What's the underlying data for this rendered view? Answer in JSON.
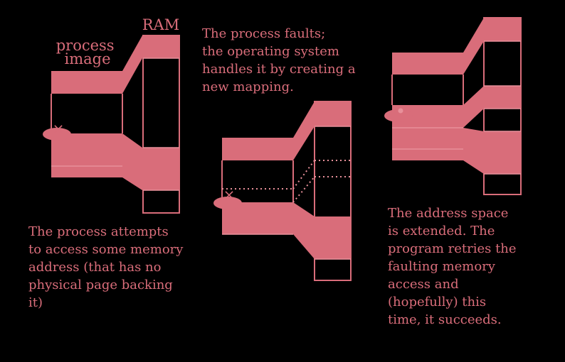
{
  "labels": {
    "process_image": [
      "process",
      "image"
    ],
    "ram": "RAM"
  },
  "captions": {
    "step1": [
      "The process attempts",
      "to access some memory",
      "address (that has no",
      "physical page backing",
      "it)"
    ],
    "step2": [
      "The process faults;",
      "the operating system",
      "handles it by creating a",
      "new mapping."
    ],
    "step3": [
      "The address space",
      "is extended. The",
      "program retries the",
      "faulting memory",
      "access and",
      "(hopefully) this",
      "time, it succeeds."
    ]
  },
  "markers": {
    "fault": "×"
  },
  "colors": {
    "background": "#000000",
    "primary": "#d96d7a",
    "light": "#e8909a"
  }
}
